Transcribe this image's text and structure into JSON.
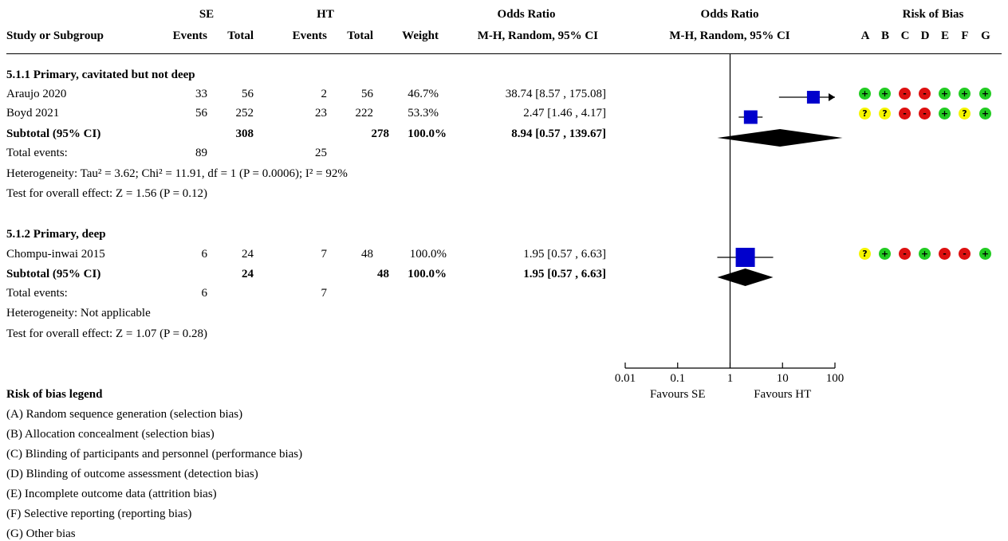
{
  "header": {
    "group_se": "SE",
    "group_ht": "HT",
    "odds_ratio": "Odds Ratio",
    "odds_ratio_plot": "Odds Ratio",
    "risk_of_bias": "Risk of Bias",
    "study": "Study or Subgroup",
    "events_se": "Events",
    "total_se": "Total",
    "events_ht": "Events",
    "total_ht": "Total",
    "weight": "Weight",
    "method": "M-H, Random, 95% CI",
    "method_plot": "M-H, Random, 95% CI",
    "rob_domains": [
      "A",
      "B",
      "C",
      "D",
      "E",
      "F",
      "G"
    ]
  },
  "subgroups": [
    {
      "title": "5.1.1 Primary, cavitated but not deep",
      "studies": [
        {
          "name": "Araujo 2020",
          "e1": "33",
          "t1": "56",
          "e2": "2",
          "t2": "56",
          "weight": "46.7%",
          "ci": "38.74 [8.57 , 175.08]",
          "rob": [
            "+",
            "+",
            "-",
            "-",
            "+",
            "+",
            "+"
          ]
        },
        {
          "name": "Boyd 2021",
          "e1": "56",
          "t1": "252",
          "e2": "23",
          "t2": "222",
          "weight": "53.3%",
          "ci": "2.47 [1.46 , 4.17]",
          "rob": [
            "?",
            "?",
            "-",
            "-",
            "+",
            "?",
            "+"
          ]
        }
      ],
      "subtotal": {
        "label": "Subtotal (95% CI)",
        "t1": "308",
        "t2": "278",
        "weight": "100.0%",
        "ci": "8.94 [0.57 , 139.67]"
      },
      "events": {
        "label": "Total events:",
        "e1": "89",
        "e2": "25"
      },
      "heterogeneity": "Heterogeneity: Tau² = 3.62; Chi² = 11.91, df = 1 (P = 0.0006); I² = 92%",
      "overall": "Test for overall effect: Z = 1.56 (P = 0.12)"
    },
    {
      "title": "5.1.2 Primary, deep",
      "studies": [
        {
          "name": "Chompu-inwai 2015",
          "e1": "6",
          "t1": "24",
          "e2": "7",
          "t2": "48",
          "weight": "100.0%",
          "ci": "1.95 [0.57 , 6.63]",
          "rob": [
            "?",
            "+",
            "-",
            "+",
            "-",
            "-",
            "+"
          ]
        }
      ],
      "subtotal": {
        "label": "Subtotal (95% CI)",
        "t1": "24",
        "t2": "48",
        "weight": "100.0%",
        "ci": "1.95 [0.57 , 6.63]"
      },
      "events": {
        "label": "Total events:",
        "e1": "6",
        "e2": "7"
      },
      "heterogeneity": "Heterogeneity: Not applicable",
      "overall": "Test for overall effect: Z = 1.07 (P = 0.28)"
    }
  ],
  "legend": {
    "title": "Risk of bias legend",
    "items": [
      "(A) Random sequence generation (selection bias)",
      "(B) Allocation concealment (selection bias)",
      "(C) Blinding of participants and personnel (performance bias)",
      "(D) Blinding of outcome assessment (detection bias)",
      "(E) Incomplete outcome data (attrition bias)",
      "(F) Selective reporting (reporting bias)",
      "(G) Other bias"
    ]
  },
  "colors": {
    "low": "#22cc22",
    "unclear": "#f5f500",
    "high": "#dd1111",
    "marker": "#0000cc",
    "line": "#000000"
  },
  "chart_data": {
    "type": "forest",
    "x_scale": "log",
    "xlim": [
      0.01,
      100
    ],
    "x_ticks": [
      "0.01",
      "0.1",
      "1",
      "10",
      "100"
    ],
    "x_tick_values": [
      0.01,
      0.1,
      1,
      10,
      100
    ],
    "favours_left": "Favours SE",
    "favours_right": "Favours HT",
    "series": [
      {
        "name": "Araujo 2020",
        "kind": "study",
        "or": 38.74,
        "lo": 8.57,
        "hi": 175.08,
        "weight": 46.7
      },
      {
        "name": "Boyd 2021",
        "kind": "study",
        "or": 2.47,
        "lo": 1.46,
        "hi": 4.17,
        "weight": 53.3
      },
      {
        "name": "Subtotal (95% CI)",
        "kind": "subtotal",
        "or": 8.94,
        "lo": 0.57,
        "hi": 139.67
      },
      {
        "name": "Chompu-inwai 2015",
        "kind": "study",
        "or": 1.95,
        "lo": 0.57,
        "hi": 6.63,
        "weight": 100.0
      },
      {
        "name": "Subtotal (95% CI)",
        "kind": "subtotal",
        "or": 1.95,
        "lo": 0.57,
        "hi": 6.63
      }
    ]
  }
}
